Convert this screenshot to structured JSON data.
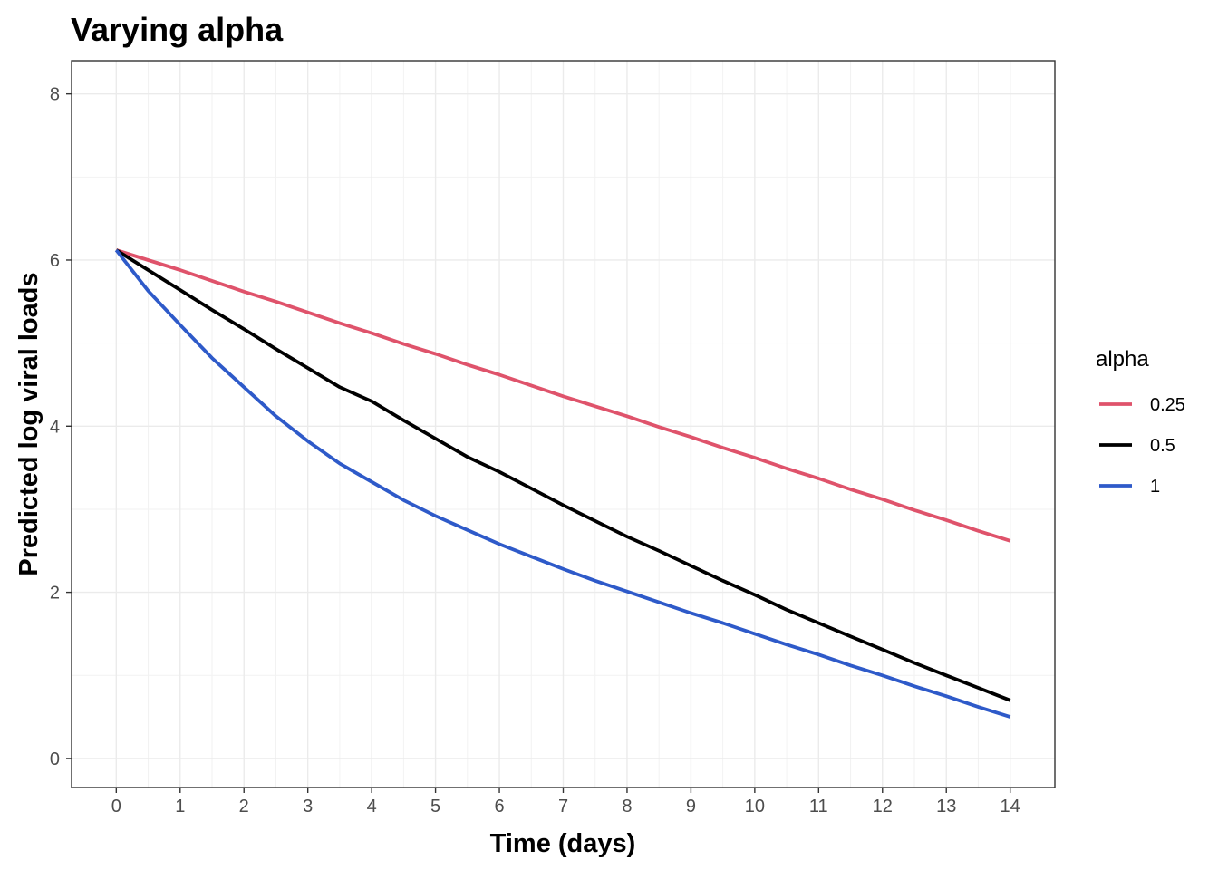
{
  "chart_data": {
    "type": "line",
    "title": "Varying alpha",
    "xlabel": "Time (days)",
    "ylabel": "Predicted log viral loads",
    "xlim": [
      -0.7,
      14.7
    ],
    "ylim": [
      -0.35,
      8.4
    ],
    "x_ticks": [
      0,
      1,
      2,
      3,
      4,
      5,
      6,
      7,
      8,
      9,
      10,
      11,
      12,
      13,
      14
    ],
    "y_ticks": [
      0,
      2,
      4,
      6,
      8
    ],
    "grid": true,
    "legend": {
      "title": "alpha",
      "placement": "right"
    },
    "x": [
      0,
      0.5,
      1,
      1.5,
      2,
      2.5,
      3,
      3.5,
      4,
      4.5,
      5,
      5.5,
      6,
      6.5,
      7,
      7.5,
      8,
      8.5,
      9,
      9.5,
      10,
      10.5,
      11,
      11.5,
      12,
      12.5,
      13,
      13.5,
      14
    ],
    "series": [
      {
        "name": "0.25",
        "color": "#df536b",
        "values": [
          6.12,
          6.0,
          5.88,
          5.75,
          5.62,
          5.5,
          5.37,
          5.24,
          5.12,
          4.99,
          4.87,
          4.74,
          4.62,
          4.49,
          4.36,
          4.24,
          4.12,
          3.99,
          3.87,
          3.74,
          3.62,
          3.49,
          3.37,
          3.24,
          3.12,
          2.99,
          2.87,
          2.74,
          2.62
        ]
      },
      {
        "name": "0.5",
        "color": "#000000",
        "values": [
          6.12,
          5.88,
          5.64,
          5.4,
          5.17,
          4.93,
          4.7,
          4.47,
          4.3,
          4.07,
          3.85,
          3.63,
          3.45,
          3.25,
          3.05,
          2.86,
          2.67,
          2.5,
          2.32,
          2.14,
          1.97,
          1.79,
          1.63,
          1.47,
          1.31,
          1.15,
          1.0,
          0.85,
          0.7
        ]
      },
      {
        "name": "1",
        "color": "#2e5ac9",
        "values": [
          6.12,
          5.63,
          5.22,
          4.82,
          4.47,
          4.12,
          3.82,
          3.55,
          3.33,
          3.11,
          2.92,
          2.75,
          2.58,
          2.43,
          2.28,
          2.14,
          2.01,
          1.88,
          1.75,
          1.63,
          1.5,
          1.37,
          1.25,
          1.12,
          1.0,
          0.87,
          0.75,
          0.62,
          0.5
        ]
      }
    ]
  }
}
